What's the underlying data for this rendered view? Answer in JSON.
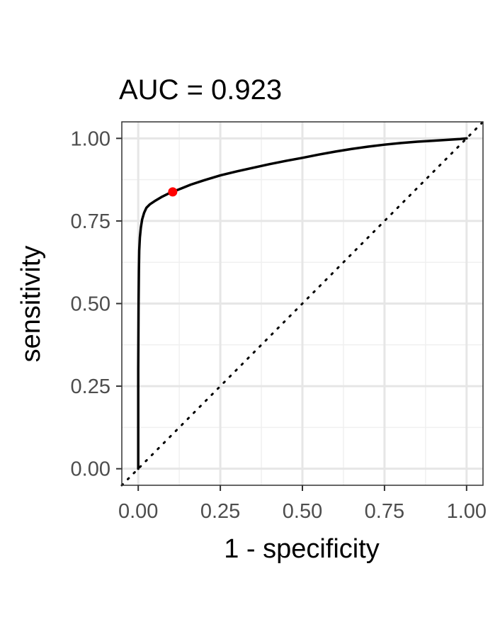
{
  "chart_data": {
    "type": "line",
    "title": "AUC = 0.923",
    "xlabel": "1 - specificity",
    "ylabel": "sensitivity",
    "xlim": [
      -0.05,
      1.05
    ],
    "ylim": [
      -0.05,
      1.05
    ],
    "x_ticks": [
      0.0,
      0.25,
      0.5,
      0.75,
      1.0
    ],
    "x_tick_labels": [
      "0.00",
      "0.25",
      "0.50",
      "0.75",
      "1.00"
    ],
    "y_ticks": [
      0.0,
      0.25,
      0.5,
      0.75,
      1.0
    ],
    "y_tick_labels": [
      "0.00",
      "0.25",
      "0.50",
      "0.75",
      "1.00"
    ],
    "grid": true,
    "series": [
      {
        "style": "solid",
        "color": "#000000",
        "x": [
          0.0,
          0.0,
          0.001,
          0.002,
          0.003,
          0.005,
          0.008,
          0.012,
          0.018,
          0.025,
          0.035,
          0.05,
          0.07,
          0.09,
          0.105,
          0.13,
          0.16,
          0.2,
          0.25,
          0.3,
          0.35,
          0.4,
          0.45,
          0.5,
          0.55,
          0.6,
          0.65,
          0.7,
          0.75,
          0.8,
          0.85,
          0.9,
          0.95,
          0.98,
          1.0
        ],
        "y": [
          0.0,
          0.3,
          0.5,
          0.6,
          0.66,
          0.7,
          0.73,
          0.755,
          0.775,
          0.79,
          0.8,
          0.81,
          0.822,
          0.832,
          0.838,
          0.848,
          0.86,
          0.873,
          0.888,
          0.9,
          0.911,
          0.922,
          0.932,
          0.941,
          0.951,
          0.96,
          0.968,
          0.975,
          0.981,
          0.986,
          0.99,
          0.993,
          0.996,
          0.998,
          1.0
        ]
      },
      {
        "style": "dotted",
        "color": "#000000",
        "x": [
          -0.05,
          1.05
        ],
        "y": [
          -0.05,
          1.05
        ]
      }
    ],
    "highlight_point": {
      "x": 0.105,
      "y": 0.838,
      "color": "#ff0000"
    }
  }
}
